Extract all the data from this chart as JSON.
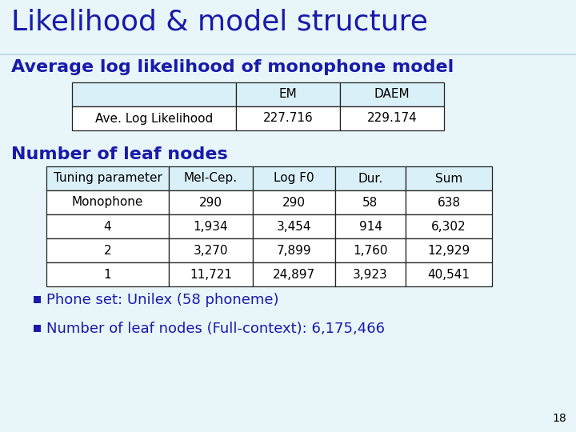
{
  "title": "Likelihood & model structure",
  "bg_color": "#e8f6fa",
  "text_color": "#1a1aaa",
  "black": "#000000",
  "section1_title": "Average log likelihood of monophone model",
  "table1_headers": [
    "",
    "EM",
    "DAEM"
  ],
  "table1_row": [
    "Ave. Log Likelihood",
    "227.716",
    "229.174"
  ],
  "table1_header_bg": "#daf0f8",
  "table1_cell_bg": "#ffffff",
  "section2_title": "Number of leaf nodes",
  "table2_headers": [
    "Tuning parameter",
    "Mel-Cep.",
    "Log F0",
    "Dur.",
    "Sum"
  ],
  "table2_rows": [
    [
      "Monophone",
      "290",
      "290",
      "58",
      "638"
    ],
    [
      "4",
      "1,934",
      "3,454",
      "914",
      "6,302"
    ],
    [
      "2",
      "3,270",
      "7,899",
      "1,760",
      "12,929"
    ],
    [
      "1",
      "11,721",
      "24,897",
      "3,923",
      "40,541"
    ]
  ],
  "table2_header_bg": "#daf0f8",
  "table2_cell_bg": "#ffffff",
  "bullets": [
    "Phone set: Unilex (58 phoneme)",
    "Number of leaf nodes (Full-context): 6,175,466"
  ],
  "slide_number": "18",
  "title_fontsize": 26,
  "section_fontsize": 16,
  "table_fontsize": 11,
  "bullet_fontsize": 13
}
